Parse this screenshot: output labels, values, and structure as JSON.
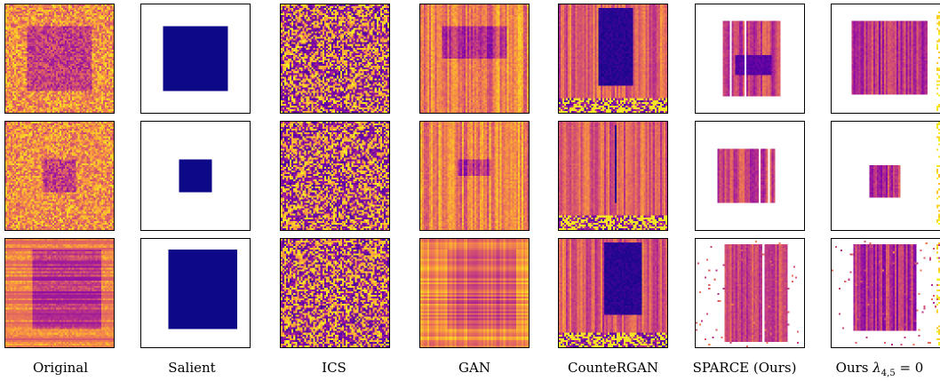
{
  "figure": {
    "columns": [
      {
        "id": "original",
        "label": "Original"
      },
      {
        "id": "salient",
        "label": "Salient"
      },
      {
        "id": "ics",
        "label": "ICS"
      },
      {
        "id": "gan",
        "label": "GAN"
      },
      {
        "id": "counteRGAN",
        "label": "CounteRGAN"
      },
      {
        "id": "sparce",
        "label": "SPARCE (Ours)"
      },
      {
        "id": "ablation",
        "label_prefix": "Ours ",
        "label_math": "λ",
        "label_sub": "4,5",
        "label_suffix": " = 0"
      }
    ],
    "rows": 3,
    "colormap": "plasma",
    "salient_color": "#0d0887"
  }
}
